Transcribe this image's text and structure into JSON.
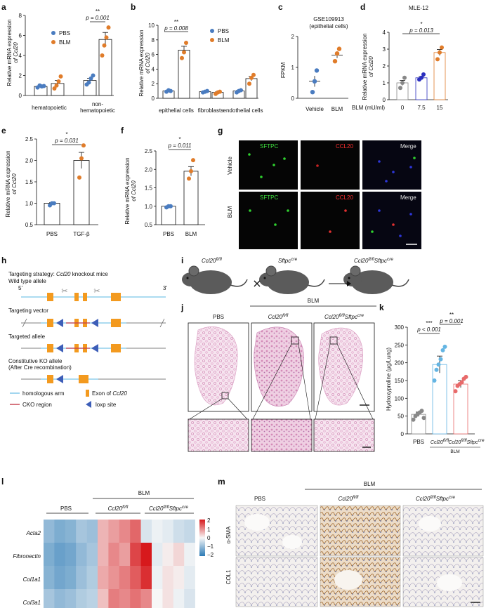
{
  "panels": {
    "a": {
      "letter": "a",
      "ylabel_line1": "Relative mRNA expression",
      "ylabel_line2": "of Ccl20",
      "legend": [
        "PBS",
        "BLM"
      ],
      "sig_stars": "**",
      "p_label": "p = 0.001",
      "categories": [
        "hematopoietic",
        "non-",
        "hematopoietic"
      ],
      "yticks": [
        "0",
        "2",
        "4",
        "6",
        "8"
      ]
    },
    "b": {
      "letter": "b",
      "ylabel_line1": "Relative mRNA expression",
      "ylabel_line2": "of Ccl20",
      "legend": [
        "PBS",
        "BLM"
      ],
      "sig_stars": "**",
      "p_label": "p = 0.008",
      "categories": [
        "epithelial cells",
        "fibroblasts",
        "endothelial cells"
      ],
      "yticks": [
        "0",
        "2",
        "4",
        "6",
        "8",
        "10"
      ]
    },
    "c": {
      "letter": "c",
      "title1": "GSE109913",
      "title2": "(epithelial cells)",
      "ylabel": "FPKM",
      "categories": [
        "Vehicle",
        "BLM"
      ],
      "yticks": [
        "0",
        "1",
        "2"
      ]
    },
    "d": {
      "letter": "d",
      "title": "MLE-12",
      "ylabel_line1": "Relative mRNA expression",
      "ylabel_line2": "of Ccl20",
      "sig_stars": "*",
      "p_label": "p = 0.013",
      "xaxis_label": "BLM (mU/ml)",
      "categories": [
        "0",
        "7.5",
        "15"
      ],
      "yticks": [
        "0",
        "1",
        "2",
        "3",
        "4"
      ]
    },
    "e": {
      "letter": "e",
      "ylabel_line1": "Relative mRNA expression",
      "ylabel_line2": "of Ccl20",
      "sig_stars": "*",
      "p_label": "p = 0.031",
      "categories": [
        "PBS",
        "TGF-β"
      ],
      "yticks": [
        "0.5",
        "1.0",
        "1.5",
        "2.0",
        "2.5"
      ]
    },
    "f": {
      "letter": "f",
      "ylabel_line1": "Relative mRNA expression",
      "ylabel_line2": "of Ccl20",
      "sig_stars": "*",
      "p_label": "p = 0.011",
      "categories": [
        "PBS",
        "BLM"
      ],
      "yticks": [
        "0.5",
        "1.0",
        "1.5",
        "2.0",
        "2.5"
      ]
    },
    "g": {
      "letter": "g",
      "col_labels": [
        "SFTPC",
        "CCL20",
        "Merge"
      ],
      "row_labels": [
        "Vehicle",
        "BLM"
      ]
    },
    "h": {
      "letter": "h",
      "strategy_prefix": "Targeting strategy: ",
      "strategy_gene": "Ccl20",
      "strategy_suffix": " knockout mice",
      "wt_label": "Wild type allele",
      "five_prime": "5'",
      "three_prime": "3'",
      "targeting_vector": "Targeting vector",
      "targeted_allele": "Targeted allele",
      "ko_line1": "Constitutive KO allele",
      "ko_line2": "(After Cre recombination)",
      "legend_arm": "homologous arm",
      "legend_exon_prefix": "Exon of ",
      "legend_exon_gene": "Ccl20",
      "legend_cko": "CKO region",
      "legend_loxp": "loxp site"
    },
    "i": {
      "letter": "i",
      "mouse1": "Ccl20",
      "mouse1_sup": "fl/fl",
      "mouse2": "Sftpc",
      "mouse2_sup": "cre",
      "mouse3": "Ccl20",
      "mouse3_sup": "fl/fl",
      "mouse3b": "Sftpc",
      "mouse3b_sup": "cre",
      "cross": "×"
    },
    "j": {
      "letter": "j",
      "blm": "BLM",
      "col_pbs": "PBS",
      "col2": "Ccl20",
      "col2_sup": "fl/fl",
      "col3": "Ccl20",
      "col3_sup": "fl/fl",
      "col3b": "Sftpc",
      "col3b_sup": "cre"
    },
    "k": {
      "letter": "k",
      "ylabel": "Hydroxyproline (μg/Lung)",
      "stars1": "***",
      "p1": "p < 0.001",
      "stars2": "**",
      "p2": "p = 0.001",
      "x1": "PBS",
      "x2": "Ccl20",
      "x2_sup": "fl/fl",
      "x3": "Ccl20",
      "x3_sup": "fl/fl",
      "x3b": "Sftpc",
      "x3b_sup": "cre",
      "blm": "BLM",
      "yticks": [
        "0",
        "50",
        "100",
        "150",
        "200",
        "250",
        "300"
      ]
    },
    "l": {
      "letter": "l",
      "blm": "BLM",
      "grp_pbs": "PBS",
      "grp2": "Ccl20",
      "grp2_sup": "fl/fl",
      "grp3": "Ccl20",
      "grp3_sup": "fl/fl",
      "grp3b": "Sftpc",
      "grp3b_sup": "cre",
      "genes": [
        "Acta2",
        "Fibronectin",
        "Col1a1",
        "Col3a1"
      ],
      "scale": [
        "2",
        "1",
        "0",
        "−1",
        "−2"
      ]
    },
    "m": {
      "letter": "m",
      "blm": "BLM",
      "col_pbs": "PBS",
      "col2": "Ccl20",
      "col2_sup": "fl/fl",
      "col3": "Ccl20",
      "col3_sup": "fl/fl",
      "col3b": "Sftpc",
      "col3b_sup": "cre",
      "row1": "α-SMA",
      "row2": "COL1"
    }
  },
  "colors": {
    "pbs": "#4a7cc0",
    "blm": "#e07c2a",
    "d_mid": "#2b2fbf",
    "k_pbs": "#888888",
    "k_fl": "#64b5e3",
    "k_cre": "#e86a6a",
    "heat_hi": "#d7191c",
    "heat_lo": "#2c7bb6"
  },
  "chart_data": [
    {
      "id": "a",
      "type": "bar",
      "categories": [
        "hematopoietic",
        "non-hematopoietic"
      ],
      "series": [
        {
          "name": "PBS",
          "values": [
            0.9,
            1.5
          ],
          "points": [
            [
              0.8,
              1.0,
              0.9,
              0.95
            ],
            [
              1.1,
              1.3,
              1.7,
              2.0
            ]
          ]
        },
        {
          "name": "BLM",
          "values": [
            1.2,
            5.6
          ],
          "points": [
            [
              0.7,
              1.0,
              1.4,
              1.9
            ],
            [
              4.0,
              5.0,
              5.8,
              6.8
            ]
          ]
        }
      ],
      "ylim": [
        0,
        8
      ]
    },
    {
      "id": "b",
      "type": "bar",
      "categories": [
        "epithelial cells",
        "fibroblasts",
        "endothelial cells"
      ],
      "series": [
        {
          "name": "PBS",
          "values": [
            1.0,
            0.9,
            1.0
          ],
          "points": [
            [
              0.9,
              1.1,
              1.0
            ],
            [
              0.8,
              0.9,
              1.0
            ],
            [
              0.8,
              1.0,
              1.1
            ]
          ]
        },
        {
          "name": "BLM",
          "values": [
            6.6,
            0.8,
            2.7
          ],
          "points": [
            [
              5.5,
              6.3,
              7.6
            ],
            [
              0.6,
              0.8,
              0.9
            ],
            [
              2.0,
              2.8,
              3.2
            ]
          ]
        }
      ],
      "ylim": [
        0,
        10
      ]
    },
    {
      "id": "c",
      "type": "scatter",
      "categories": [
        "Vehicle",
        "BLM"
      ],
      "series": [
        {
          "name": "Vehicle",
          "values": [
            0.55
          ],
          "points": [
            0.2,
            0.55,
            0.9
          ]
        },
        {
          "name": "BLM",
          "values": [
            1.4
          ],
          "points": [
            1.2,
            1.45,
            1.6
          ]
        }
      ],
      "ylim": [
        0,
        2
      ]
    },
    {
      "id": "d",
      "type": "bar",
      "categories": [
        "0",
        "7.5",
        "15"
      ],
      "values": [
        1.0,
        1.3,
        2.8
      ],
      "points": [
        [
          0.7,
          1.0,
          1.3
        ],
        [
          1.2,
          1.3,
          1.5
        ],
        [
          2.4,
          2.8,
          3.1
        ]
      ],
      "ylim": [
        0,
        4
      ]
    },
    {
      "id": "e",
      "type": "bar",
      "categories": [
        "PBS",
        "TGF-β"
      ],
      "values": [
        1.0,
        2.0
      ],
      "points": [
        [
          0.95,
          1.0,
          1.0
        ],
        [
          1.6,
          2.05,
          2.35
        ]
      ],
      "ylim": [
        0.5,
        2.5
      ]
    },
    {
      "id": "f",
      "type": "bar",
      "categories": [
        "PBS",
        "BLM"
      ],
      "values": [
        1.0,
        1.95
      ],
      "points": [
        [
          0.97,
          1.0,
          1.0
        ],
        [
          1.75,
          1.95,
          2.25
        ]
      ],
      "ylim": [
        0.5,
        2.5
      ]
    },
    {
      "id": "k",
      "type": "bar",
      "categories": [
        "PBS",
        "Ccl20 fl/fl",
        "Ccl20 fl/fl Sftpc cre"
      ],
      "values": [
        55,
        195,
        140
      ],
      "points": [
        [
          40,
          50,
          55,
          60,
          65,
          45
        ],
        [
          150,
          180,
          195,
          210,
          235,
          245
        ],
        [
          120,
          135,
          140,
          145,
          155,
          160
        ]
      ],
      "ylim": [
        0,
        300
      ]
    },
    {
      "id": "l",
      "type": "heatmap",
      "rows": [
        "Acta2",
        "Fibronectin",
        "Col1a1",
        "Col3a1"
      ],
      "values": [
        [
          -1.0,
          -1.2,
          -1.1,
          -0.8,
          -0.9,
          0.6,
          0.8,
          1.0,
          1.3,
          -0.3,
          -0.1,
          -0.2,
          -0.4,
          -0.5
        ],
        [
          -1.2,
          -1.4,
          -1.3,
          -1.0,
          -0.8,
          0.6,
          1.0,
          0.8,
          1.6,
          2.0,
          -0.2,
          0.1,
          0.3,
          -0.1
        ],
        [
          -1.1,
          -1.3,
          -1.2,
          -0.9,
          -0.7,
          0.7,
          0.9,
          1.1,
          1.4,
          1.8,
          -0.1,
          0.2,
          0.1,
          -0.2
        ],
        [
          -0.8,
          -1.0,
          -0.9,
          -0.7,
          -0.6,
          0.5,
          1.1,
          1.0,
          1.2,
          1.0,
          0.0,
          0.2,
          -0.1,
          -0.3
        ]
      ],
      "scale": [
        -2,
        2
      ]
    }
  ]
}
